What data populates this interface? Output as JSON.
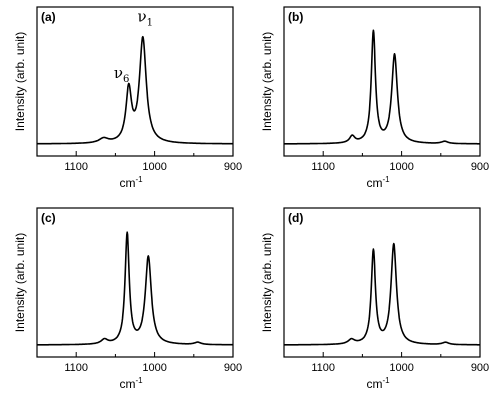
{
  "chart_data": [
    {
      "type": "line",
      "panel_label": "(a)",
      "xlabel": "cm",
      "xlabel_sup": "-1",
      "ylabel": "Intensity (arb. unit)",
      "xlim": [
        1150,
        900
      ],
      "ylim": [
        0,
        1.1
      ],
      "xticks": [
        1100,
        1000,
        900
      ],
      "annotations": [
        {
          "symbol": "ν",
          "sub": "6",
          "x": 1042,
          "y": 0.58
        },
        {
          "symbol": "ν",
          "sub": "1",
          "x": 1012,
          "y": 1.08
        }
      ],
      "peaks": [
        {
          "center": 1065,
          "height": 0.04,
          "width": 7
        },
        {
          "center": 1033,
          "height": 0.46,
          "width": 4.2
        },
        {
          "center": 1015,
          "height": 0.92,
          "width": 5.2
        }
      ],
      "baseline": 0.0
    },
    {
      "type": "line",
      "panel_label": "(b)",
      "xlabel": "cm",
      "xlabel_sup": "-1",
      "ylabel": "Intensity (arb. unit)",
      "xlim": [
        1150,
        900
      ],
      "ylim": [
        0,
        1.1
      ],
      "xticks": [
        1100,
        1000,
        900
      ],
      "annotations": [],
      "peaks": [
        {
          "center": 1063,
          "height": 0.06,
          "width": 4
        },
        {
          "center": 1036,
          "height": 0.98,
          "width": 3.2
        },
        {
          "center": 1009,
          "height": 0.78,
          "width": 4.3
        },
        {
          "center": 945,
          "height": 0.02,
          "width": 5
        }
      ],
      "baseline": 0.0
    },
    {
      "type": "line",
      "panel_label": "(c)",
      "xlabel": "cm",
      "xlabel_sup": "-1",
      "ylabel": "Intensity (arb. unit)",
      "xlim": [
        1150,
        900
      ],
      "ylim": [
        0,
        1.1
      ],
      "xticks": [
        1100,
        1000,
        900
      ],
      "annotations": [],
      "peaks": [
        {
          "center": 1064,
          "height": 0.04,
          "width": 5
        },
        {
          "center": 1035,
          "height": 0.97,
          "width": 3.2
        },
        {
          "center": 1008,
          "height": 0.77,
          "width": 4.6
        },
        {
          "center": 945,
          "height": 0.02,
          "width": 5
        }
      ],
      "baseline": 0.0
    },
    {
      "type": "line",
      "panel_label": "(d)",
      "xlabel": "cm",
      "xlabel_sup": "-1",
      "ylabel": "Intensity (arb. unit)",
      "xlim": [
        1150,
        900
      ],
      "ylim": [
        0,
        1.1
      ],
      "xticks": [
        1100,
        1000,
        900
      ],
      "annotations": [],
      "peaks": [
        {
          "center": 1064,
          "height": 0.04,
          "width": 5
        },
        {
          "center": 1036,
          "height": 0.82,
          "width": 3.2
        },
        {
          "center": 1010,
          "height": 0.88,
          "width": 4.2
        },
        {
          "center": 944,
          "height": 0.02,
          "width": 5
        }
      ],
      "baseline": 0.0
    }
  ]
}
